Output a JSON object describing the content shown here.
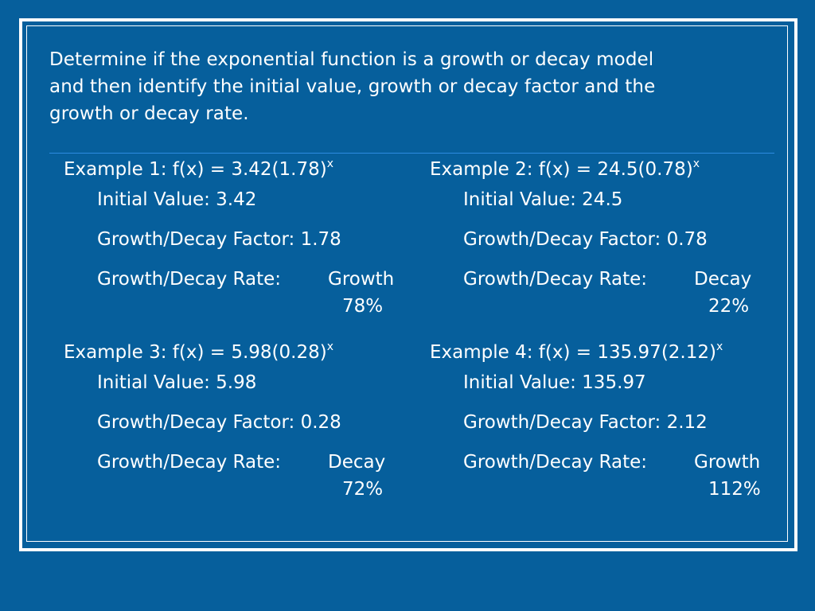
{
  "colors": {
    "background": "#065f9c",
    "frame": "#ffffff",
    "divider": "#2c8be0",
    "text": "#ffffff"
  },
  "prompt": {
    "line1": "Determine if the exponential function is a growth or decay model",
    "line2": "and then identify the initial value, growth or decay factor and the",
    "line3": "growth or decay rate."
  },
  "examples": [
    {
      "title_base": "Example 1:  f(x) = 3.42(1.78)",
      "title_exponent": "x",
      "initial_value": "Initial Value: 3.42",
      "factor": "Growth/Decay Factor:  1.78",
      "rate_label": "Growth/Decay Rate:",
      "rate_type": "Growth",
      "rate_percent": "78%"
    },
    {
      "title_base": "Example 2:  f(x) = 24.5(0.78)",
      "title_exponent": "x",
      "initial_value": "Initial Value: 24.5",
      "factor": "Growth/Decay Factor:  0.78",
      "rate_label": "Growth/Decay Rate:",
      "rate_type": "Decay",
      "rate_percent": "22%"
    },
    {
      "title_base": "Example 3:  f(x) = 5.98(0.28)",
      "title_exponent": "x",
      "initial_value": "Initial Value: 5.98",
      "factor": "Growth/Decay Factor:  0.28",
      "rate_label": "Growth/Decay Rate:",
      "rate_type": "Decay",
      "rate_percent": "72%"
    },
    {
      "title_base": "Example 4:  f(x) = 135.97(2.12)",
      "title_exponent": "x",
      "initial_value": "Initial Value:  135.97",
      "factor": "Growth/Decay Factor:  2.12",
      "rate_label": "Growth/Decay Rate:",
      "rate_type": "Growth",
      "rate_percent": "112%"
    }
  ]
}
